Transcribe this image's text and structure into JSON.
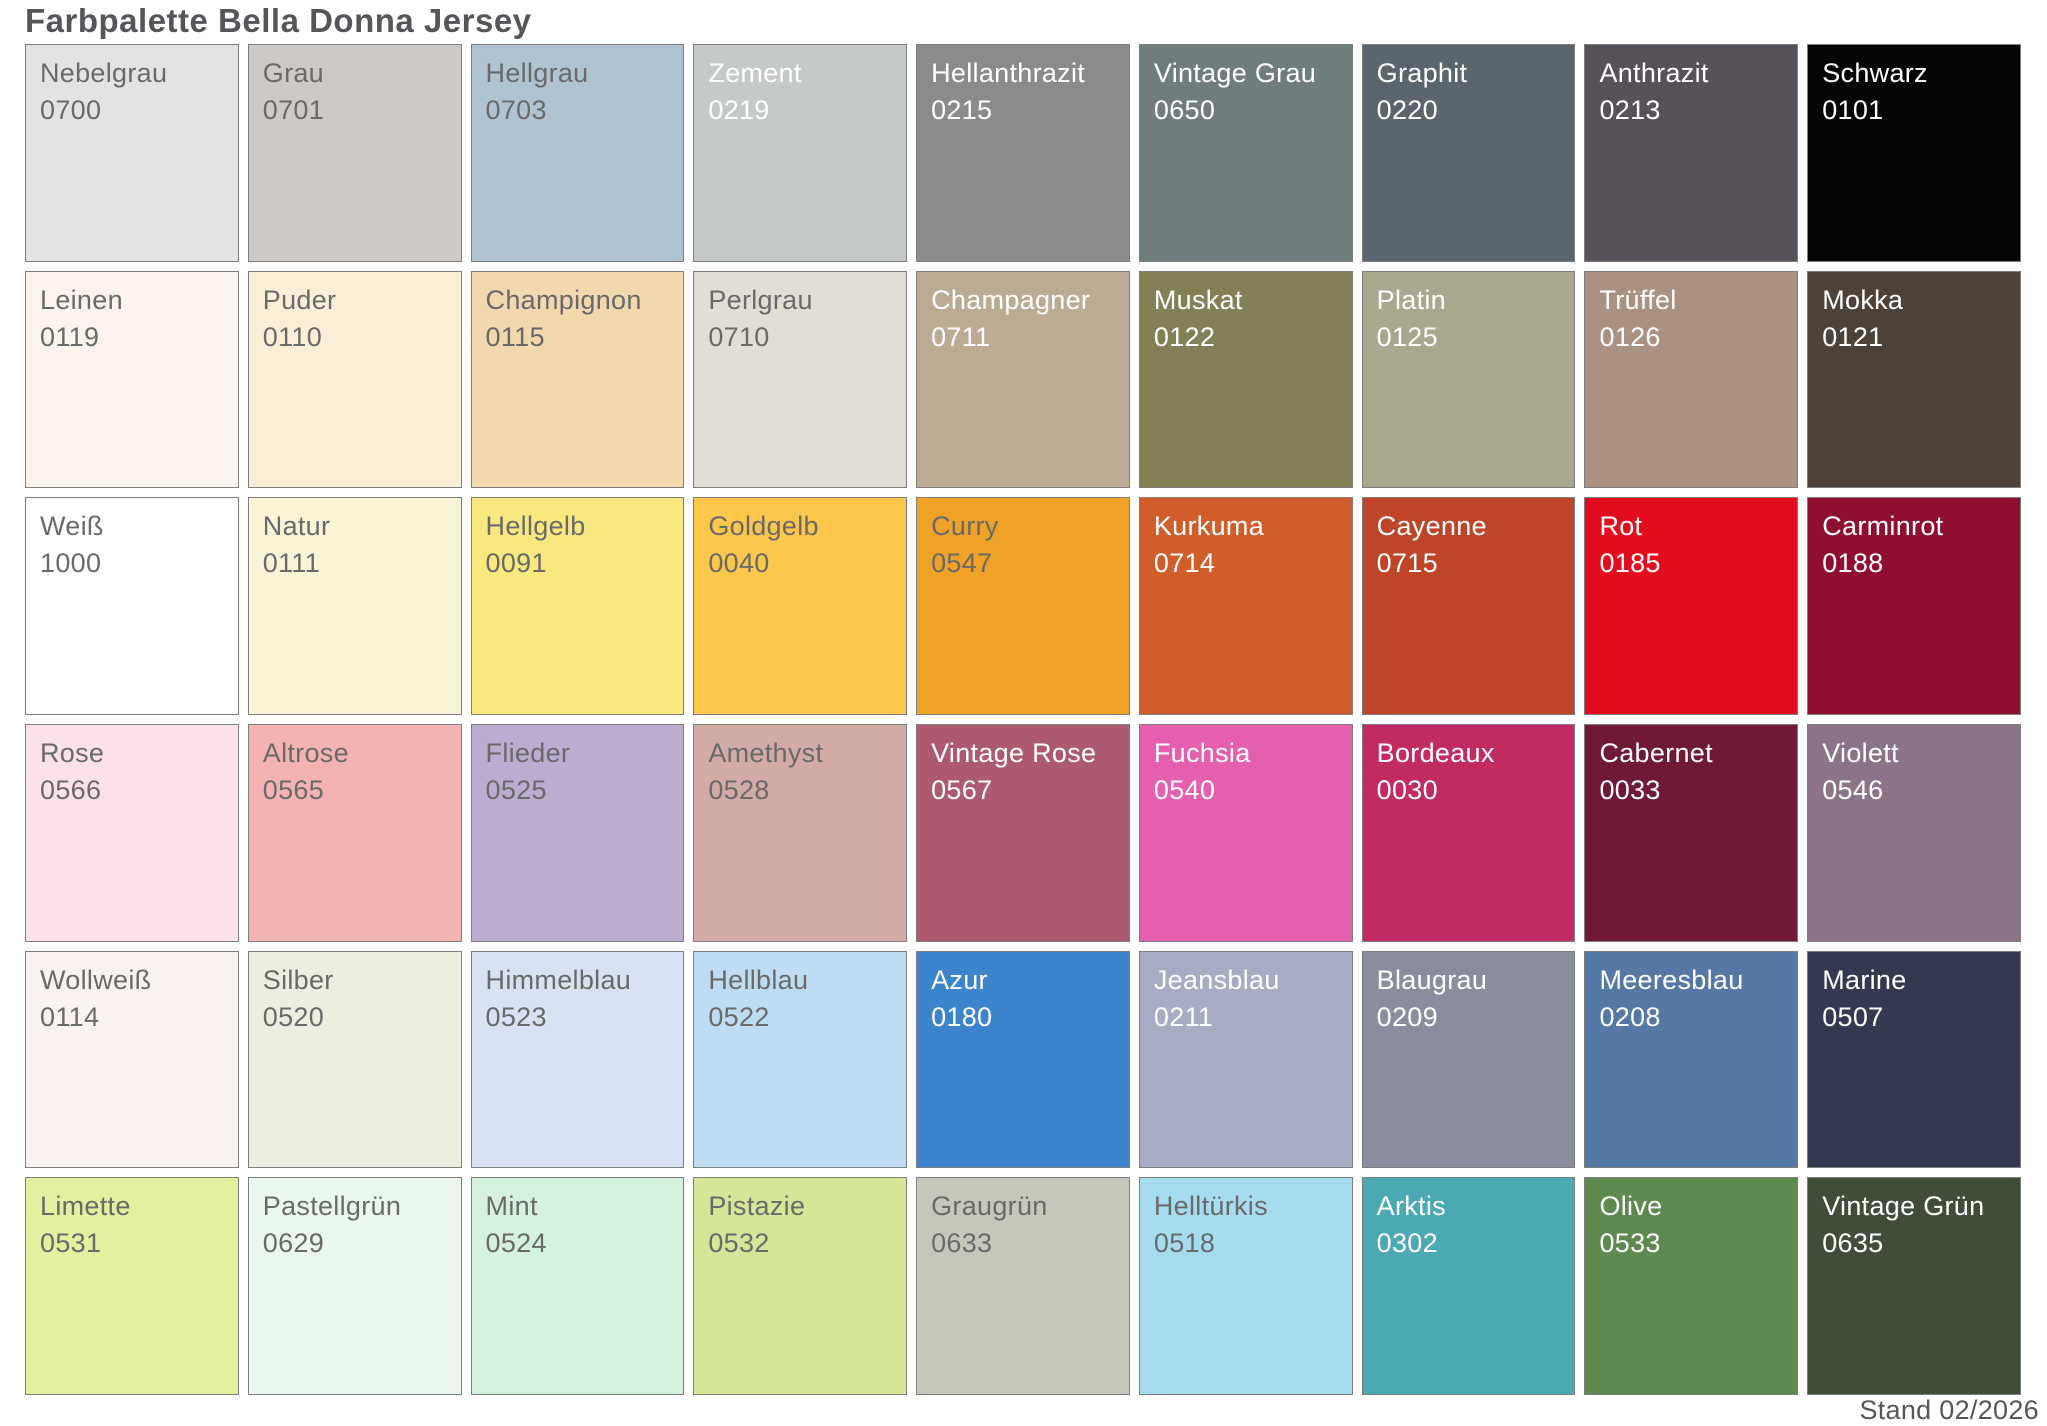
{
  "title": "Farbpalette Bella Donna Jersey",
  "footer": "Stand 02/2026",
  "grid": {
    "columns": 9,
    "rows": 6
  },
  "style": {
    "swatch_border_color": "#7e7e7e",
    "dark_label_color": "#6a6a6a",
    "light_label_color": "#ffffff",
    "heading_color": "#55565a"
  },
  "swatches": [
    {
      "name": "Nebelgrau",
      "code": "0700",
      "color": "#e3e3e1",
      "text": "dark"
    },
    {
      "name": "Grau",
      "code": "0701",
      "color": "#cdc9c6",
      "text": "dark"
    },
    {
      "name": "Hellgrau",
      "code": "0703",
      "color": "#afc3d1",
      "text": "dark"
    },
    {
      "name": "Zement",
      "code": "0219",
      "color": "#c6c9ca",
      "text": "light"
    },
    {
      "name": "Hellanthrazit",
      "code": "0215",
      "color": "#8b8b89",
      "text": "light"
    },
    {
      "name": "Vintage Grau",
      "code": "0650",
      "color": "#6f7e7d",
      "text": "light"
    },
    {
      "name": "Graphit",
      "code": "0220",
      "color": "#5b6570",
      "text": "light"
    },
    {
      "name": "Anthrazit",
      "code": "0213",
      "color": "#575259",
      "text": "light"
    },
    {
      "name": "Schwarz",
      "code": "0101",
      "color": "#050505",
      "text": "light"
    },
    {
      "name": "Leinen",
      "code": "0119",
      "color": "#fdf2ec",
      "text": "dark"
    },
    {
      "name": "Puder",
      "code": "0110",
      "color": "#fbeed7",
      "text": "dark"
    },
    {
      "name": "Champignon",
      "code": "0115",
      "color": "#f1d8ad",
      "text": "dark"
    },
    {
      "name": "Perlgrau",
      "code": "0710",
      "color": "#e1ded6",
      "text": "dark"
    },
    {
      "name": "Champagner",
      "code": "0711",
      "color": "#bcab93",
      "text": "light"
    },
    {
      "name": "Muskat",
      "code": "0122",
      "color": "#857f56",
      "text": "light"
    },
    {
      "name": "Platin",
      "code": "0125",
      "color": "#a9a78e",
      "text": "light"
    },
    {
      "name": "Trüffel",
      "code": "0126",
      "color": "#ab9180",
      "text": "light"
    },
    {
      "name": "Mokka",
      "code": "0121",
      "color": "#4e4138",
      "text": "light"
    },
    {
      "name": "Weiß",
      "code": "1000",
      "color": "#ffffff",
      "text": "dark"
    },
    {
      "name": "Natur",
      "code": "0111",
      "color": "#fbf3d5",
      "text": "dark"
    },
    {
      "name": "Hellgelb",
      "code": "0091",
      "color": "#f9e87e",
      "text": "dark"
    },
    {
      "name": "Goldgelb",
      "code": "0040",
      "color": "#fcc74b",
      "text": "dark"
    },
    {
      "name": "Curry",
      "code": "0547",
      "color": "#f0a226",
      "text": "dark"
    },
    {
      "name": "Kurkuma",
      "code": "0714",
      "color": "#cf5e2b",
      "text": "light"
    },
    {
      "name": "Cayenne",
      "code": "0715",
      "color": "#bf4529",
      "text": "light"
    },
    {
      "name": "Rot",
      "code": "0185",
      "color": "#e40d1f",
      "text": "light"
    },
    {
      "name": "Carminrot",
      "code": "0188",
      "color": "#8e0f2f",
      "text": "light"
    },
    {
      "name": "Rose",
      "code": "0566",
      "color": "#fce1e8",
      "text": "dark"
    },
    {
      "name": "Altrose",
      "code": "0565",
      "color": "#f4b3b3",
      "text": "dark"
    },
    {
      "name": "Flieder",
      "code": "0525",
      "color": "#bcadd0",
      "text": "dark"
    },
    {
      "name": "Amethyst",
      "code": "0528",
      "color": "#d3aba6",
      "text": "dark"
    },
    {
      "name": "Vintage Rose",
      "code": "0567",
      "color": "#ad5a70",
      "text": "light"
    },
    {
      "name": "Fuchsia",
      "code": "0540",
      "color": "#e460ae",
      "text": "light"
    },
    {
      "name": "Bordeaux",
      "code": "0030",
      "color": "#c12a62",
      "text": "light"
    },
    {
      "name": "Cabernet",
      "code": "0033",
      "color": "#6f1937",
      "text": "light"
    },
    {
      "name": "Violett",
      "code": "0546",
      "color": "#8b7389",
      "text": "light"
    },
    {
      "name": "Wollweiß",
      "code": "0114",
      "color": "#faf2f0",
      "text": "dark"
    },
    {
      "name": "Silber",
      "code": "0520",
      "color": "#eceee0",
      "text": "dark"
    },
    {
      "name": "Himmelblau",
      "code": "0523",
      "color": "#d8e2f2",
      "text": "dark"
    },
    {
      "name": "Hellblau",
      "code": "0522",
      "color": "#bfddf2",
      "text": "dark"
    },
    {
      "name": "Azur",
      "code": "0180",
      "color": "#3c84cc",
      "text": "light"
    },
    {
      "name": "Jeansblau",
      "code": "0211",
      "color": "#a7abc4",
      "text": "light"
    },
    {
      "name": "Blaugrau",
      "code": "0209",
      "color": "#8a8d9e",
      "text": "light"
    },
    {
      "name": "Meeresblau",
      "code": "0208",
      "color": "#5578a4",
      "text": "light"
    },
    {
      "name": "Marine",
      "code": "0507",
      "color": "#343851",
      "text": "light"
    },
    {
      "name": "Limette",
      "code": "0531",
      "color": "#e2f1a0",
      "text": "dark"
    },
    {
      "name": "Pastellgrün",
      "code": "0629",
      "color": "#eaf7ef",
      "text": "dark"
    },
    {
      "name": "Mint",
      "code": "0524",
      "color": "#d5f2de",
      "text": "dark"
    },
    {
      "name": "Pistazie",
      "code": "0532",
      "color": "#d6e699",
      "text": "dark"
    },
    {
      "name": "Graugrün",
      "code": "0633",
      "color": "#c5c7bb",
      "text": "dark"
    },
    {
      "name": "Helltürkis",
      "code": "0518",
      "color": "#a6ddee",
      "text": "dark"
    },
    {
      "name": "Arktis",
      "code": "0302",
      "color": "#4aa9b3",
      "text": "light"
    },
    {
      "name": "Olive",
      "code": "0533",
      "color": "#5d8a4e",
      "text": "light"
    },
    {
      "name": "Vintage Grün",
      "code": "0635",
      "color": "#404e39",
      "text": "light"
    }
  ]
}
